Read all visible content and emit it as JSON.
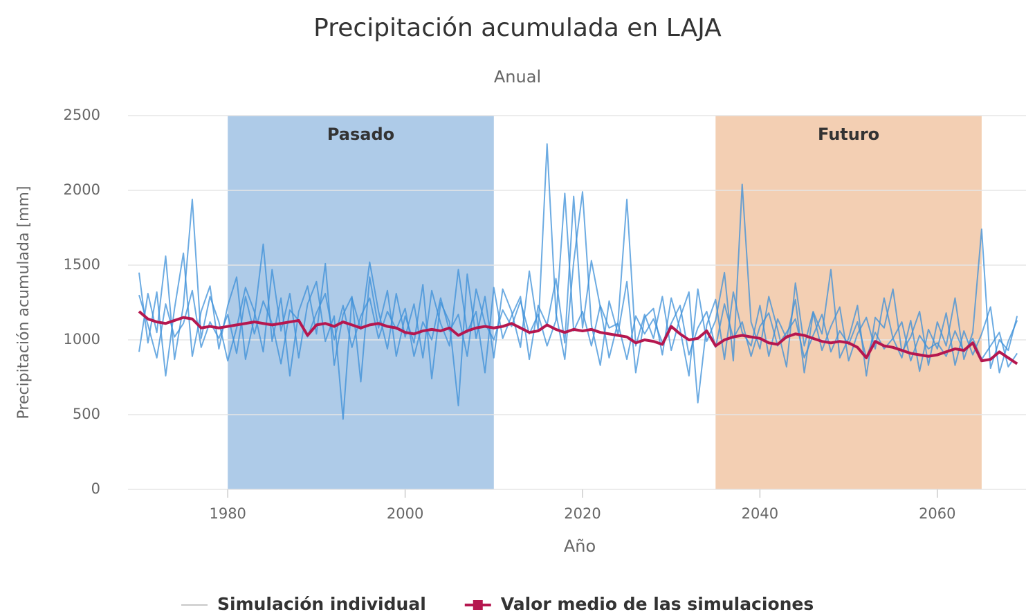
{
  "chart_data": {
    "type": "line",
    "title": "Precipitación acumulada en LAJA",
    "subtitle": "Anual",
    "x_label": "Año",
    "y_label": "Precipitación acumulada [mm]",
    "xlim": [
      1970,
      2070
    ],
    "xticks": [
      1980,
      2000,
      2020,
      2040,
      2060
    ],
    "ylim": [
      0,
      2500
    ],
    "yticks": [
      0,
      500,
      1000,
      1500,
      2000,
      2500
    ],
    "grid": true,
    "plot_bands": [
      {
        "label": "Pasado",
        "from": 1980,
        "to": 2010,
        "color": "#aecbe8"
      },
      {
        "label": "Futuro",
        "from": 2035,
        "to": 2065,
        "color": "#f3cfb3"
      }
    ],
    "x": [
      1970,
      1971,
      1972,
      1973,
      1974,
      1975,
      1976,
      1977,
      1978,
      1979,
      1980,
      1981,
      1982,
      1983,
      1984,
      1985,
      1986,
      1987,
      1988,
      1989,
      1990,
      1991,
      1992,
      1993,
      1994,
      1995,
      1996,
      1997,
      1998,
      1999,
      2000,
      2001,
      2002,
      2003,
      2004,
      2005,
      2006,
      2007,
      2008,
      2009,
      2010,
      2011,
      2012,
      2013,
      2014,
      2015,
      2016,
      2017,
      2018,
      2019,
      2020,
      2021,
      2022,
      2023,
      2024,
      2025,
      2026,
      2027,
      2028,
      2029,
      2030,
      2031,
      2032,
      2033,
      2034,
      2035,
      2036,
      2037,
      2038,
      2039,
      2040,
      2041,
      2042,
      2043,
      2044,
      2045,
      2046,
      2047,
      2048,
      2049,
      2050,
      2051,
      2052,
      2053,
      2054,
      2055,
      2056,
      2057,
      2058,
      2059,
      2060,
      2061,
      2062,
      2063,
      2064,
      2065,
      2066,
      2067,
      2068,
      2069
    ],
    "series": [
      {
        "name": "Simulación individual",
        "color": "#3b8fd8",
        "runs": [
          [
            1450,
            980,
            1320,
            760,
            1210,
            1580,
            890,
            1190,
            1360,
            940,
            1230,
            1420,
            870,
            1150,
            1640,
            990,
            1280,
            760,
            1190,
            1360,
            1040,
            1510,
            830,
            1170,
            1290,
            720,
            1420,
            1080,
            1330,
            890,
            1160,
            980,
            1370,
            740,
            1250,
            1120,
            560,
            1440,
            1010,
            1290,
            880,
            1340,
            1190,
            950,
            1460,
            1060,
            2310,
            1180,
            870,
            1520,
            1990,
            1100,
            830,
            1260,
            1040,
            1390,
            780,
            1150,
            1210,
            900,
            1280,
            1070,
            760,
            1340,
            990,
            1130,
            1450,
            860,
            2040,
            1120,
            940,
            1290,
            1070,
            820,
            1380,
            960,
            1190,
            1040,
            1470,
            880,
            1010,
            1230,
            760,
            1150,
            1080,
            1340,
            920,
            1020,
            1190,
            830,
            1120,
            960,
            1280,
            870,
            1050,
            1740,
            810,
            1000,
            930,
            1160
          ],
          [
            920,
            1310,
            1050,
            1560,
            870,
            1230,
            1940,
            1010,
            1290,
            1120,
            860,
            1080,
            1350,
            1190,
            920,
            1470,
            1060,
            1310,
            880,
            1240,
            1390,
            990,
            1160,
            470,
            1280,
            1070,
            1520,
            1190,
            940,
            1310,
            1020,
            1240,
            880,
            1330,
            1110,
            960,
            1470,
            1050,
            1190,
            780,
            1350,
            1010,
            1160,
            1290,
            870,
            1230,
            1100,
            1410,
            980,
            1960,
            1080,
            1530,
            1220,
            880,
            1120,
            1940,
            960,
            1170,
            1010,
            1290,
            930,
            1150,
            1320,
            580,
            1100,
            1270,
            870,
            1320,
            1050,
            960,
            1230,
            890,
            1140,
            1010,
            1270,
            780,
            1180,
            930,
            1090,
            1220,
            860,
            1040,
            1150,
            940,
            1280,
            1010,
            880,
            1130,
            790,
            1070,
            940,
            1180,
            830,
            1060,
            900,
            1040,
            1220,
            780,
            990,
            1130
          ],
          [
            1300,
            1100,
            880,
            1240,
            1020,
            1110,
            1330,
            950,
            1120,
            1010,
            1170,
            910,
            1290,
            1040,
            1260,
            1110,
            840,
            1200,
            1130,
            1020,
            1180,
            1310,
            1000,
            1230,
            950,
            1160,
            1280,
            1010,
            1190,
            1070,
            1210,
            890,
            1120,
            1000,
            1280,
            1060,
            1170,
            890,
            1340,
            1110,
            1000,
            1200,
            1090,
            1260,
            1040,
            1170,
            960,
            1130,
            1980,
            1060,
            1190,
            960,
            1230,
            1080,
            1110,
            870,
            1160,
            1040,
            1140,
            980,
            1110,
            1230,
            900,
            1080,
            1190,
            950,
            1240,
            1010,
            1120,
            890,
            1090,
            1180,
            960,
            1050,
            1140,
            880,
            1030,
            1170,
            920,
            1060,
            970,
            1120,
            880,
            1050,
            940,
            1010,
            1120,
            860,
            1030,
            940,
            980,
            890,
            1060,
            920,
            1010,
            870,
            960,
            1050,
            820,
            910
          ]
        ]
      },
      {
        "name": "Valor medio de las simulaciones",
        "color": "#b5174f",
        "values": [
          1190,
          1140,
          1120,
          1110,
          1130,
          1150,
          1140,
          1080,
          1090,
          1080,
          1090,
          1100,
          1110,
          1120,
          1110,
          1100,
          1110,
          1120,
          1130,
          1030,
          1100,
          1110,
          1090,
          1120,
          1100,
          1080,
          1100,
          1110,
          1090,
          1080,
          1050,
          1040,
          1060,
          1070,
          1060,
          1080,
          1030,
          1060,
          1080,
          1090,
          1080,
          1090,
          1110,
          1080,
          1050,
          1060,
          1100,
          1070,
          1050,
          1070,
          1060,
          1070,
          1050,
          1040,
          1030,
          1020,
          980,
          1000,
          990,
          970,
          1090,
          1040,
          1000,
          1010,
          1060,
          960,
          1000,
          1020,
          1030,
          1020,
          1010,
          980,
          970,
          1020,
          1040,
          1030,
          1010,
          990,
          980,
          990,
          980,
          950,
          880,
          990,
          960,
          950,
          930,
          910,
          900,
          890,
          900,
          920,
          940,
          930,
          980,
          860,
          870,
          920,
          880,
          840
        ]
      }
    ]
  }
}
